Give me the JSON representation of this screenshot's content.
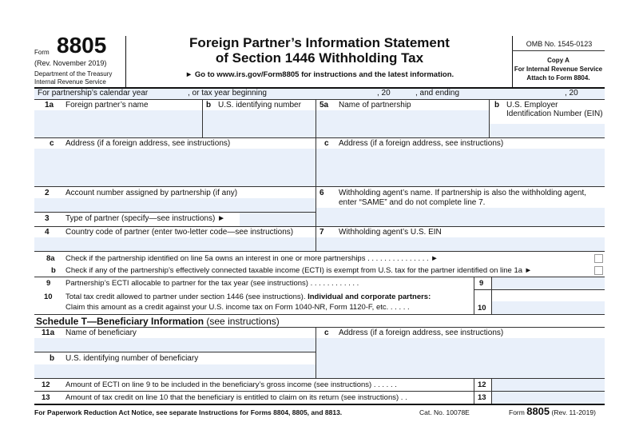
{
  "header": {
    "form_word": "Form",
    "form_number": "8805",
    "revision": "(Rev. November 2019)",
    "dept1": "Department of the Treasury",
    "dept2": "Internal Revenue Service",
    "title1": "Foreign Partner’s Information Statement",
    "title2": "of Section 1446 Withholding Tax",
    "goto": "► Go to www.irs.gov/Form8805 for instructions and the latest information.",
    "omb": "OMB No. 1545-0123",
    "copy": "Copy A",
    "copy_for": "For Internal Revenue Service",
    "attach": "Attach to Form 8804."
  },
  "year_row": {
    "calendar": "For partnership’s calendar year",
    "tax_year": ", or tax year beginning",
    "twenty1": ", 20",
    "ending": ", and ending",
    "twenty2": ", 20"
  },
  "lines": {
    "l1a_num": "1a",
    "l1a": "Foreign partner’s name",
    "l1b_num": "b",
    "l1b": "U.S. identifying number",
    "l5a_num": "5a",
    "l5a": "Name of partnership",
    "l5b_num": "b",
    "l5b1": "U.S. Employer",
    "l5b2": "Identification Number (EIN)",
    "l1c_num": "c",
    "l1c": "Address (if a foreign address, see instructions)",
    "l5c_num": "c",
    "l5c": "Address (if a foreign address, see instructions)",
    "l2_num": "2",
    "l2": "Account number assigned by partnership (if any)",
    "l6_num": "6",
    "l6a": "Withholding agent’s name. If partnership is also the withholding agent,",
    "l6b": "enter “SAME” and do not complete line 7.",
    "l3_num": "3",
    "l3": "Type of partner (specify—see instructions) ►",
    "l4_num": "4",
    "l4": "Country code of partner (enter two-letter code—see instructions)",
    "l7_num": "7",
    "l7": "Withholding agent’s U.S. EIN",
    "l8a_num": "8a",
    "l8a": "Check if the partnership identified on line 5a owns an interest in one or more partnerships  .  .  .  .  .  .  .  .  .  .  .  .  .  .  .  ►",
    "l8b_num": "b",
    "l8b": "Check if any of the partnership’s effectively connected taxable income (ECTI) is exempt from U.S. tax for the partner identified on line 1a ►",
    "l9_num": "9",
    "l9": "Partnership’s ECTI allocable to partner for the tax year (see instructions) .  .  .  .  .  .  .  .  .  .  .  .",
    "l9_box": "9",
    "l10_num": "10",
    "l10a": "Total tax credit allowed to partner under section 1446 (see instructions). ",
    "l10a_bold": "Individual and corporate partners:",
    "l10b": "Claim this amount as a credit against your U.S. income tax on Form 1040-NR, Form 1120-F, etc.  .  .  .  .  .",
    "l10_box": "10"
  },
  "schedule_t": {
    "title": "Schedule T—Beneficiary Information",
    "title_note": "(see instructions)",
    "l11a_num": "11a",
    "l11a": "Name of beneficiary",
    "l11c_num": "c",
    "l11c": "Address (if a foreign address, see instructions)",
    "l11b_num": "b",
    "l11b": "U.S. identifying number of beneficiary",
    "l12_num": "12",
    "l12": "Amount of ECTI on line 9 to be included in the beneficiary’s gross income (see instructions)  .  .  .  .  .  .",
    "l12_box": "12",
    "l13_num": "13",
    "l13": "Amount of tax credit on line 10 that the beneficiary is entitled to claim on its return (see instructions)   .  .",
    "l13_box": "13"
  },
  "footer": {
    "notice": "For Paperwork Reduction Act Notice, see separate Instructions for Forms 8804, 8805, and 8813.",
    "cat": "Cat. No. 10078E",
    "form_word": "Form",
    "form_number": "8805",
    "rev": "(Rev. 11-2019)"
  },
  "colors": {
    "field_fill": "#e9f0fa"
  }
}
